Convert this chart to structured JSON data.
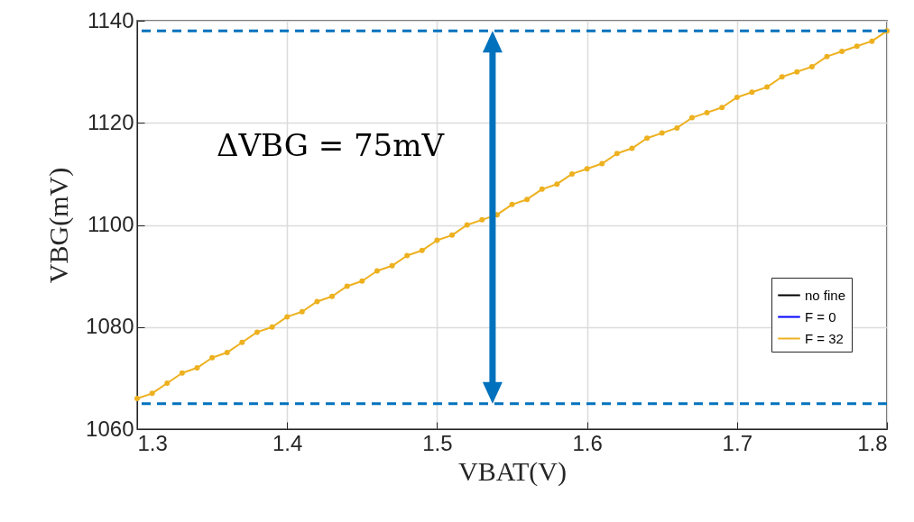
{
  "chart_data": {
    "type": "line",
    "xlabel": "VBAT(V)",
    "ylabel": "VBG(mV)",
    "annotations": [
      "ΔVBG = 75mV"
    ],
    "x": [
      1.3,
      1.31,
      1.32,
      1.33,
      1.34,
      1.35,
      1.36,
      1.37,
      1.38,
      1.39,
      1.4,
      1.41,
      1.42,
      1.43,
      1.44,
      1.45,
      1.46,
      1.47,
      1.48,
      1.49,
      1.5,
      1.51,
      1.52,
      1.53,
      1.54,
      1.55,
      1.56,
      1.57,
      1.58,
      1.59,
      1.6,
      1.61,
      1.62,
      1.63,
      1.64,
      1.65,
      1.66,
      1.67,
      1.68,
      1.69,
      1.7,
      1.71,
      1.72,
      1.73,
      1.74,
      1.75,
      1.76,
      1.77,
      1.78,
      1.79,
      1.8
    ],
    "series": [
      {
        "name": "no fine",
        "color": "#000000",
        "values": [
          null,
          null,
          null,
          null,
          null,
          null,
          null,
          null,
          null,
          null,
          null,
          null,
          null,
          null,
          null,
          null,
          null,
          null,
          null,
          null,
          null,
          null,
          null,
          null,
          null,
          null,
          null,
          null,
          null,
          null,
          null,
          null,
          null,
          null,
          null,
          null,
          null,
          null,
          null,
          null,
          null,
          null,
          null,
          null,
          null,
          null,
          null,
          null,
          null,
          null,
          null
        ]
      },
      {
        "name": "F = 0",
        "color": "#0000ff",
        "values": [
          null,
          null,
          null,
          null,
          null,
          null,
          null,
          null,
          null,
          null,
          null,
          null,
          null,
          null,
          null,
          null,
          null,
          null,
          null,
          null,
          null,
          null,
          null,
          null,
          null,
          null,
          null,
          null,
          null,
          null,
          null,
          null,
          null,
          null,
          null,
          null,
          null,
          null,
          null,
          null,
          null,
          null,
          null,
          null,
          null,
          null,
          null,
          null,
          null,
          null,
          null
        ]
      },
      {
        "name": "F = 32",
        "color": "#edb120",
        "values": [
          1066,
          1067,
          1069,
          1071,
          1072,
          1074,
          1075,
          1077,
          1079,
          1080,
          1082,
          1083,
          1085,
          1086,
          1088,
          1089,
          1091,
          1092,
          1094,
          1095,
          1097,
          1098,
          1100,
          1101,
          1102,
          1104,
          1105,
          1107,
          1108,
          1110,
          1111,
          1112,
          1114,
          1115,
          1117,
          1118,
          1119,
          1121,
          1122,
          1123,
          1125,
          1126,
          1127,
          1129,
          1130,
          1131,
          1133,
          1134,
          1135,
          1136,
          1138
        ]
      }
    ],
    "xlim": [
      1.3,
      1.8
    ],
    "xticks": [
      1.3,
      1.4,
      1.5,
      1.6,
      1.7,
      1.8
    ],
    "ylim": [
      1060,
      1140
    ],
    "yticks": [
      1060,
      1080,
      1100,
      1120,
      1140
    ],
    "ref_lines": [
      {
        "axis": "y",
        "value": 1138,
        "color": "#0072bd",
        "line_style": "dashed"
      },
      {
        "axis": "y",
        "value": 1065,
        "color": "#0072bd",
        "line_style": "dashed"
      }
    ],
    "grid": true,
    "legend": "right",
    "marker": "circle",
    "line_style": "solid"
  }
}
